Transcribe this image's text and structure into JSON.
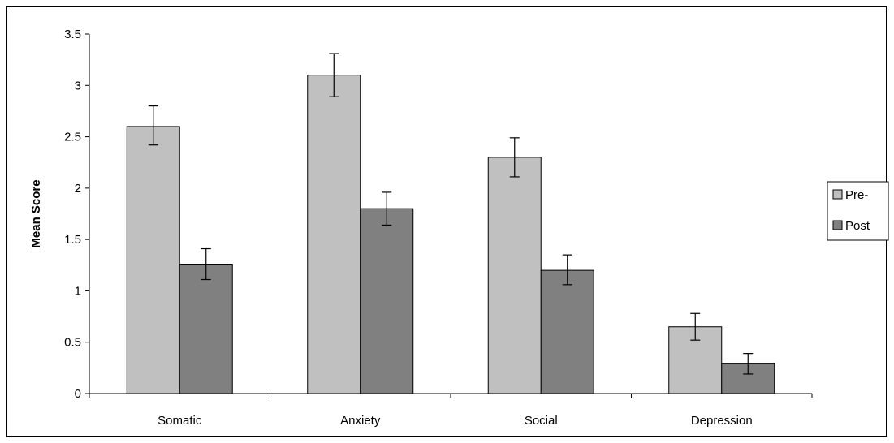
{
  "chart_data": {
    "type": "bar",
    "title": "",
    "xlabel": "",
    "ylabel": "Mean Score",
    "ylim": [
      0,
      3.5
    ],
    "yticks": [
      "0",
      "0.5",
      "1",
      "1.5",
      "2",
      "2.5",
      "3",
      "3.5"
    ],
    "categories": [
      "Somatic",
      "Anxiety",
      "Social",
      "Depression"
    ],
    "series": [
      {
        "name": "Pre-",
        "color": "#c0c0c0",
        "values": [
          2.6,
          3.1,
          2.3,
          0.65
        ],
        "error_low": [
          2.42,
          2.89,
          2.11,
          0.52
        ],
        "error_high": [
          2.8,
          3.31,
          2.49,
          0.78
        ]
      },
      {
        "name": "Post",
        "color": "#808080",
        "values": [
          1.26,
          1.8,
          1.2,
          0.29
        ],
        "error_low": [
          1.11,
          1.64,
          1.06,
          0.19
        ],
        "error_high": [
          1.41,
          1.96,
          1.35,
          0.39
        ]
      }
    ],
    "grid": false,
    "legend_position": "right"
  }
}
